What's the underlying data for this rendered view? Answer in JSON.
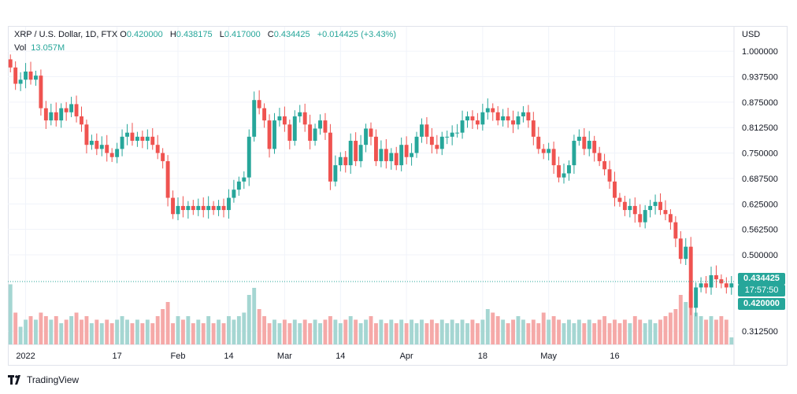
{
  "header": {
    "symbol": "XRP / U.S. Dollar, 1D, FTX",
    "open_label": "O",
    "open": "0.420000",
    "high_label": "H",
    "high": "0.438175",
    "low_label": "L",
    "low": "0.417000",
    "close_label": "C",
    "close": "0.434425",
    "change": "+0.014425 (+3.43%)",
    "vol_label": "Vol",
    "vol_value": "13.057M",
    "currency": "USD"
  },
  "badges": {
    "last_price": "0.434425",
    "countdown": "17:57:50",
    "open_price": "0.420000"
  },
  "footer": {
    "brand": "TradingView"
  },
  "colors": {
    "up": "#26a69a",
    "down": "#ef5350",
    "vol_up": "#a5d6d2",
    "vol_down": "#f5a9a8",
    "grid": "#f0f3fa"
  },
  "chart_data": {
    "type": "candlestick",
    "y_axis": {
      "ticks": [
        "1.000000",
        "0.937500",
        "0.875000",
        "0.812500",
        "0.750000",
        "0.687500",
        "0.625000",
        "0.562500",
        "0.500000",
        "0.312500"
      ],
      "tick_values": [
        1.0,
        0.9375,
        0.875,
        0.8125,
        0.75,
        0.6875,
        0.625,
        0.5625,
        0.5,
        0.3125
      ],
      "range": [
        0.28,
        1.06
      ]
    },
    "x_axis": {
      "labels": [
        "2022",
        "17",
        "Feb",
        "14",
        "Mar",
        "14",
        "Apr",
        "18",
        "May",
        "16"
      ],
      "label_index": [
        3,
        21,
        33,
        43,
        54,
        65,
        78,
        93,
        106,
        119
      ]
    },
    "closes": [
      0.96,
      0.92,
      0.93,
      0.95,
      0.93,
      0.94,
      0.86,
      0.83,
      0.85,
      0.83,
      0.86,
      0.85,
      0.87,
      0.84,
      0.82,
      0.77,
      0.78,
      0.76,
      0.77,
      0.75,
      0.74,
      0.76,
      0.79,
      0.8,
      0.78,
      0.79,
      0.78,
      0.79,
      0.77,
      0.75,
      0.73,
      0.64,
      0.6,
      0.62,
      0.61,
      0.62,
      0.61,
      0.62,
      0.61,
      0.62,
      0.61,
      0.62,
      0.61,
      0.64,
      0.66,
      0.68,
      0.69,
      0.79,
      0.88,
      0.86,
      0.83,
      0.76,
      0.83,
      0.84,
      0.82,
      0.78,
      0.84,
      0.85,
      0.82,
      0.78,
      0.81,
      0.83,
      0.8,
      0.68,
      0.72,
      0.74,
      0.72,
      0.78,
      0.73,
      0.77,
      0.81,
      0.79,
      0.73,
      0.76,
      0.73,
      0.75,
      0.72,
      0.77,
      0.74,
      0.75,
      0.79,
      0.82,
      0.79,
      0.77,
      0.76,
      0.79,
      0.79,
      0.8,
      0.8,
      0.83,
      0.84,
      0.83,
      0.82,
      0.85,
      0.86,
      0.85,
      0.83,
      0.84,
      0.83,
      0.82,
      0.84,
      0.85,
      0.83,
      0.79,
      0.76,
      0.75,
      0.76,
      0.72,
      0.69,
      0.7,
      0.72,
      0.78,
      0.79,
      0.76,
      0.78,
      0.75,
      0.73,
      0.71,
      0.68,
      0.64,
      0.63,
      0.61,
      0.62,
      0.6,
      0.58,
      0.61,
      0.62,
      0.63,
      0.61,
      0.6,
      0.58,
      0.54,
      0.49,
      0.52,
      0.37,
      0.42,
      0.43,
      0.42,
      0.45,
      0.44,
      0.43,
      0.42,
      0.43
    ],
    "volumes": [
      0.85,
      0.45,
      0.25,
      0.35,
      0.4,
      0.35,
      0.45,
      0.4,
      0.35,
      0.4,
      0.3,
      0.35,
      0.4,
      0.45,
      0.35,
      0.4,
      0.3,
      0.35,
      0.3,
      0.35,
      0.3,
      0.35,
      0.4,
      0.35,
      0.3,
      0.35,
      0.3,
      0.35,
      0.3,
      0.4,
      0.5,
      0.6,
      0.3,
      0.4,
      0.35,
      0.4,
      0.3,
      0.35,
      0.3,
      0.4,
      0.3,
      0.35,
      0.3,
      0.4,
      0.35,
      0.4,
      0.45,
      0.7,
      0.8,
      0.5,
      0.4,
      0.3,
      0.35,
      0.3,
      0.35,
      0.3,
      0.35,
      0.3,
      0.35,
      0.3,
      0.35,
      0.3,
      0.35,
      0.4,
      0.35,
      0.3,
      0.35,
      0.4,
      0.35,
      0.3,
      0.35,
      0.4,
      0.3,
      0.35,
      0.3,
      0.35,
      0.3,
      0.35,
      0.3,
      0.35,
      0.3,
      0.35,
      0.3,
      0.35,
      0.3,
      0.35,
      0.3,
      0.35,
      0.3,
      0.35,
      0.3,
      0.35,
      0.3,
      0.35,
      0.5,
      0.45,
      0.4,
      0.35,
      0.3,
      0.35,
      0.4,
      0.35,
      0.3,
      0.35,
      0.3,
      0.45,
      0.35,
      0.4,
      0.35,
      0.3,
      0.35,
      0.3,
      0.35,
      0.3,
      0.35,
      0.3,
      0.35,
      0.4,
      0.3,
      0.35,
      0.3,
      0.35,
      0.3,
      0.4,
      0.35,
      0.3,
      0.35,
      0.3,
      0.35,
      0.4,
      0.45,
      0.5,
      0.7,
      0.6,
      0.75,
      0.45,
      0.4,
      0.35,
      0.4,
      0.35,
      0.4,
      0.35,
      0.1
    ],
    "last_price": 0.434425
  }
}
